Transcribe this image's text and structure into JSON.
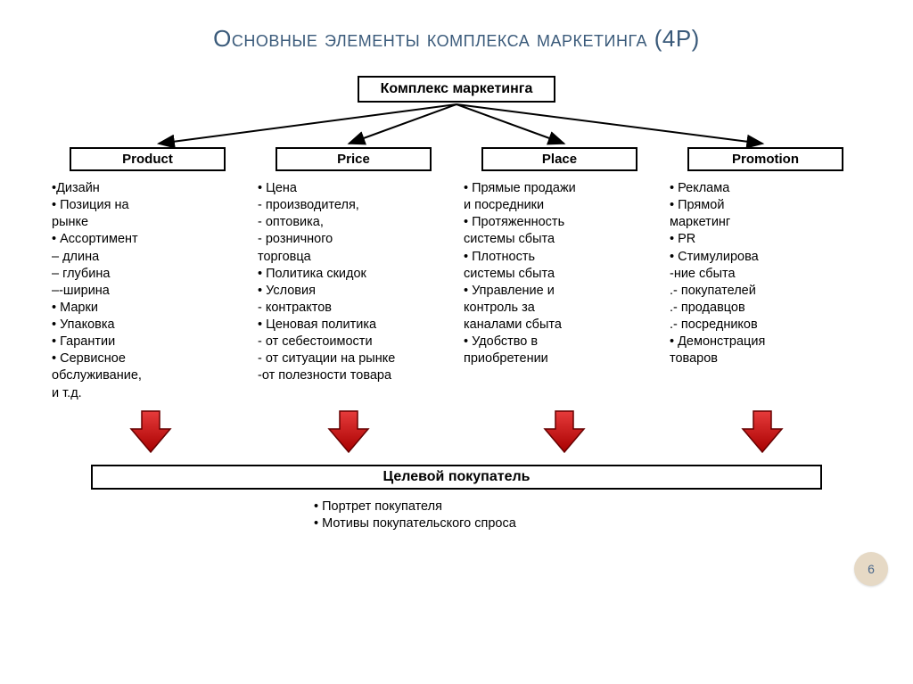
{
  "title": "Основные элементы комплекса маркетинга (4Р)",
  "top_box": "Комплекс маркетинга",
  "columns": [
    {
      "header": "Product",
      "items": "•Дизайн\n• Позиция  на\nрынке\n• Ассортимент\n– длина\n– глубина\n–-ширина\n• Марки\n• Упаковка\n• Гарантии\n• Сервисное\nобслуживание,\nи т.д."
    },
    {
      "header": "Price",
      "items": "• Цена\n- производителя,\n- оптовика,\n- розничного\nторговца\n• Политика  скидок\n• Условия\n- контрактов\n• Ценовая политика\n- от себестоимости\n- от ситуации  на рынке\n  -от полезности  товара"
    },
    {
      "header": "Place",
      "items": "• Прямые продажи\nи посредники\n• Протяженность\nсистемы сбыта\n• Плотность\nсистемы сбыта\n• Управление  и\nконтроль  за\nканалами сбыта\n• Удобство  в\nприобретении"
    },
    {
      "header": "Promotion",
      "items": "• Реклама\n• Прямой\nмаркетинг\n• PR\n• Стимулирова\n-ние сбыта\n.- покупателей\n.- продавцов\n.- посредников\n• Демонстрация\n    товаров"
    }
  ],
  "bottom_box": "Целевой покупатель",
  "bottom_items": "• Портрет  покупателя\n• Мотивы  покупательского  спроса",
  "page_number": "6",
  "styling": {
    "title_color": "#3a5a7a",
    "border_color": "#000000",
    "red_arrow_fill": "#cc0000",
    "red_arrow_stroke": "#660000",
    "page_badge_bg": "#e6d9c5",
    "page_badge_text": "#4a678a",
    "title_fontsize": 26,
    "body_fontsize": 14.5,
    "header_fontsize": 15,
    "box_fontsize": 16,
    "background": "#ffffff",
    "red_arrow_positions_pct": [
      13,
      37,
      63,
      87
    ],
    "top_arrow_targets_pct": [
      14,
      37,
      63,
      87
    ]
  }
}
